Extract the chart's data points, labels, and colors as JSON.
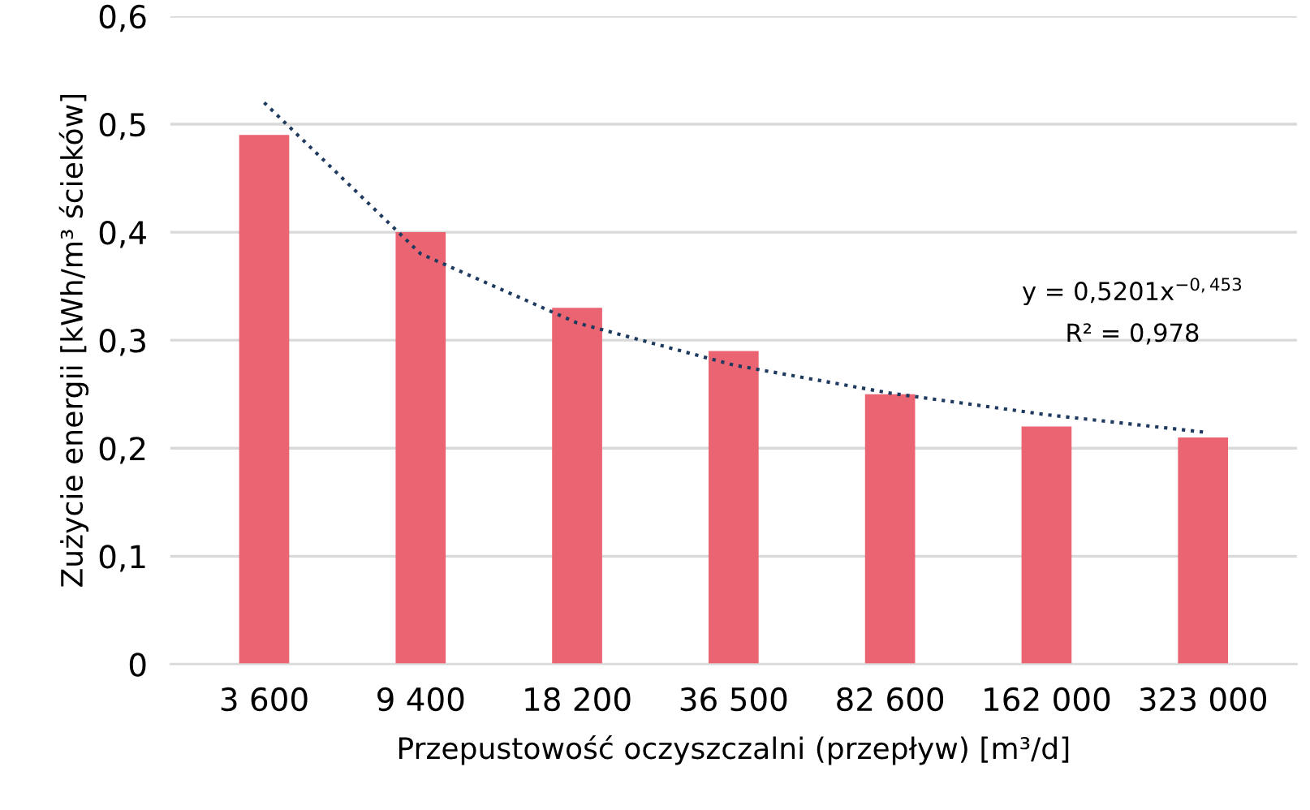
{
  "chart_data": {
    "type": "bar",
    "xlabel": "Przepustowość oczyszczalni (przepływ) [m³/d]",
    "ylabel": "Zużycie energii [kWh/m³ ścieków]",
    "categories": [
      "3 600",
      "9 400",
      "18 200",
      "36 500",
      "82 600",
      "162 000",
      "323 000"
    ],
    "series": [
      {
        "color": "#eb6472",
        "values": [
          0.49,
          0.4,
          0.33,
          0.29,
          0.25,
          0.22,
          0.21
        ]
      },
      {
        "type": "line",
        "color": "#1f3a5f",
        "line_style": "dotted",
        "x": [
          "3 600",
          "9 400",
          "18 200",
          "36 500",
          "82 600",
          "162 000",
          "323 000"
        ],
        "values": [
          0.52,
          0.38,
          0.316,
          0.277,
          0.251,
          0.231,
          0.215
        ]
      }
    ],
    "ylim": [
      0,
      0.6
    ],
    "yticks": [
      0,
      {
        "value": 0.1,
        "label": "0,1"
      },
      {
        "value": 0.2,
        "label": "0,2"
      },
      {
        "value": 0.3,
        "label": "0,3"
      },
      {
        "value": 0.4,
        "label": "0,4"
      },
      {
        "value": 0.5,
        "label": "0,5"
      },
      {
        "value": 0.6,
        "label": "0,6"
      }
    ],
    "grid": "y",
    "legend": false,
    "annotations": [
      "y = 0,5201x$^{−0,453}$",
      "R² = 0,978"
    ]
  }
}
